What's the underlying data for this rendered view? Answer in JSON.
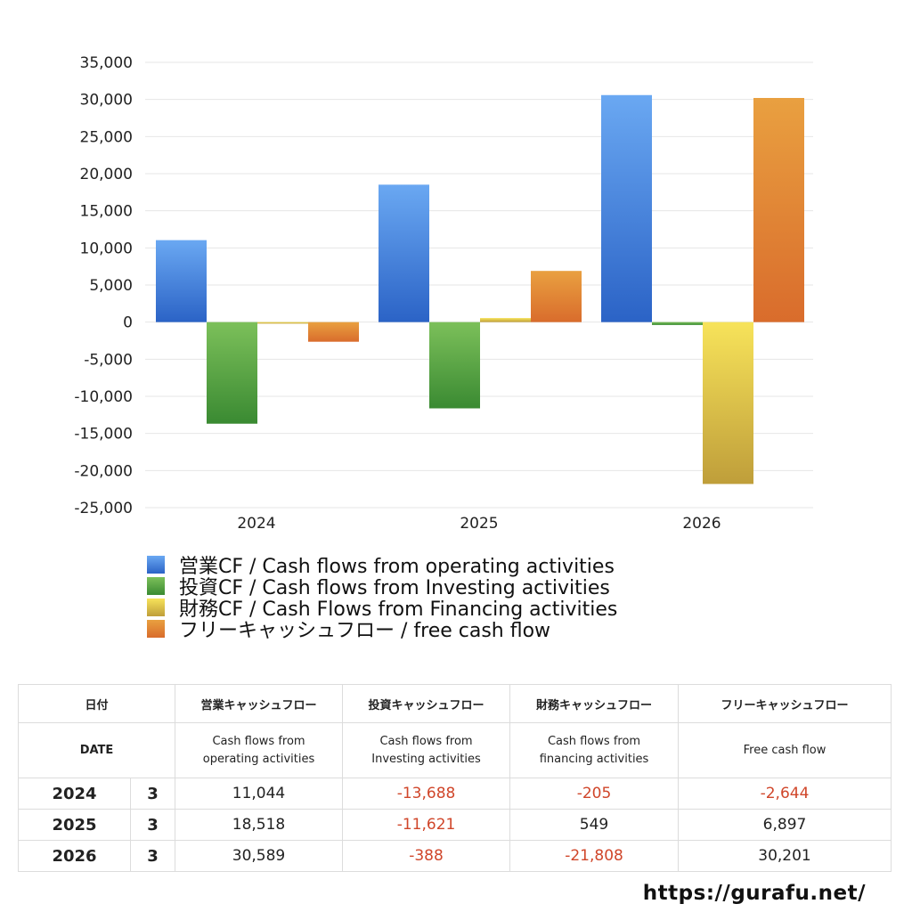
{
  "chart_data": {
    "type": "bar",
    "categories": [
      "2024",
      "2025",
      "2026"
    ],
    "ylim": [
      -25000,
      35000
    ],
    "yticks": [
      35000,
      30000,
      25000,
      20000,
      15000,
      10000,
      5000,
      0,
      -5000,
      -10000,
      -15000,
      -20000,
      -25000
    ],
    "ytick_labels": [
      "35,000",
      "30,000",
      "25,000",
      "20,000",
      "15,000",
      "10,000",
      "5,000",
      "0",
      "-5,000",
      "-10,000",
      "-15,000",
      "-20,000",
      "-25,000"
    ],
    "grid": true,
    "legend_position": "bottom",
    "series": [
      {
        "name": "営業CF / Cash flows from operating activities",
        "values": [
          11044,
          18518,
          30589
        ],
        "color_top": "#6aa8f2",
        "color_bottom": "#2b63c6"
      },
      {
        "name": "投資CF / Cash flows from Investing activities",
        "values": [
          -13688,
          -11621,
          -388
        ],
        "color_top": "#7cc05a",
        "color_bottom": "#3a8a32"
      },
      {
        "name": "財務CF / Cash Flows from Financing activities",
        "values": [
          -205,
          549,
          -21808
        ],
        "color_top": "#f7e35a",
        "color_bottom": "#bf9e3a"
      },
      {
        "name": "フリーキャッシュフロー / free cash flow",
        "values": [
          -2644,
          6897,
          30201
        ],
        "color_top": "#e9a040",
        "color_bottom": "#d96c2c"
      }
    ]
  },
  "table": {
    "headers_jp": [
      "日付",
      "営業キャッシュフロー",
      "投資キャッシュフロー",
      "財務キャッシュフロー",
      "フリーキャッシュフロー"
    ],
    "headers_en": [
      {
        "l1": "DATE",
        "l2": ""
      },
      {
        "l1": "Cash flows from",
        "l2": "operating activities"
      },
      {
        "l1": "Cash flows from",
        "l2": "Investing activities"
      },
      {
        "l1": "Cash flows from",
        "l2": "financing activities"
      },
      {
        "l1": "Free cash flow",
        "l2": ""
      }
    ],
    "rows": [
      {
        "year": "2024",
        "month": "3",
        "operating": "11,044",
        "investing": "-13,688",
        "financing": "-205",
        "free": "-2,644"
      },
      {
        "year": "2025",
        "month": "3",
        "operating": "18,518",
        "investing": "-11,621",
        "financing": "549",
        "free": "6,897"
      },
      {
        "year": "2026",
        "month": "3",
        "operating": "30,589",
        "investing": "-388",
        "financing": "-21,808",
        "free": "30,201"
      }
    ]
  },
  "footer": {
    "url": "https://gurafu.net/"
  }
}
